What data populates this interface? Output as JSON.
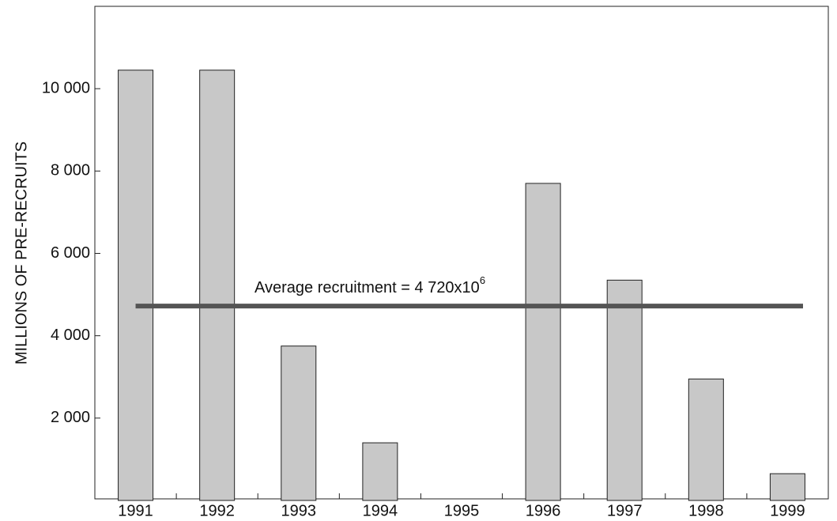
{
  "chart_data": {
    "type": "bar",
    "y_label": "MILLIONS OF PRE-RECRUITS",
    "categories": [
      "1991",
      "1992",
      "1993",
      "1994",
      "1995",
      "1996",
      "1997",
      "1998",
      "1999"
    ],
    "values": [
      10450,
      10450,
      3750,
      1400,
      null,
      7700,
      5350,
      2950,
      650
    ],
    "color": "#c8c8c8",
    "ylim": [
      0,
      12000
    ],
    "yticks": [
      {
        "value": 2000,
        "label": "2 000"
      },
      {
        "value": 4000,
        "label": "4 000"
      },
      {
        "value": 6000,
        "label": "6 000"
      },
      {
        "value": 8000,
        "label": "8 000"
      },
      {
        "value": 10000,
        "label": "10 000"
      }
    ],
    "reference_line": {
      "value": 4720,
      "label": "Average recruitment = 4 720x10",
      "label_superscript": "6",
      "color": "#555555"
    }
  }
}
